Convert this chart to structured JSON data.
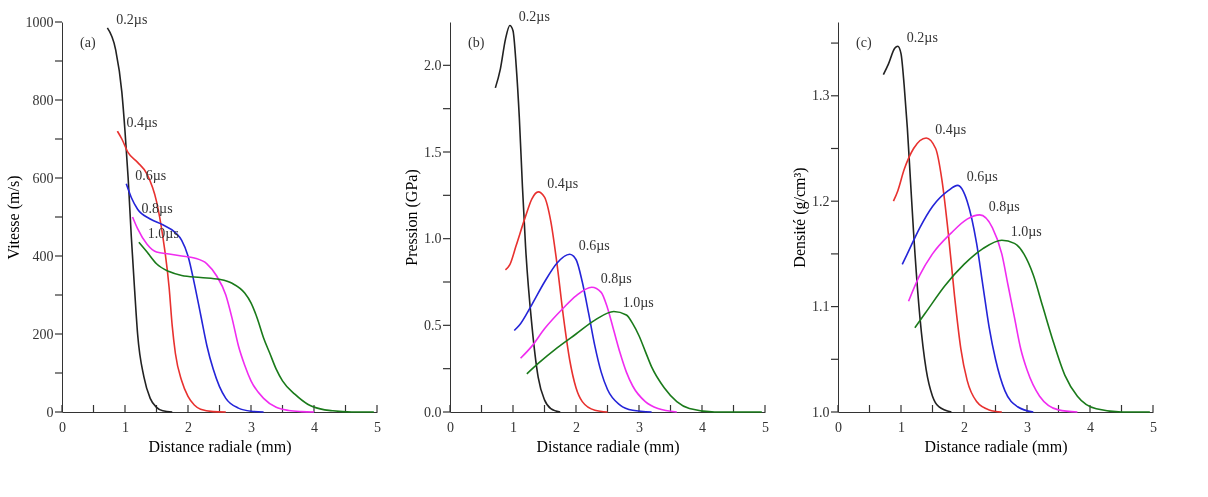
{
  "chart_data": [
    {
      "type": "line",
      "xlabel": "Distance radiale (mm)",
      "ylabel": "Vitesse (m/s)",
      "annotations": [
        "(a)"
      ],
      "grid": false,
      "legend": false,
      "marker": "none",
      "line_style": "solid",
      "xlim": [
        0,
        5
      ],
      "xticks": [
        0,
        {
          "value": 0.5,
          "label": null
        },
        1,
        {
          "value": 1.5,
          "label": null
        },
        2,
        {
          "value": 2.5,
          "label": null
        },
        3,
        {
          "value": 3.5,
          "label": null
        },
        4,
        {
          "value": 4.5,
          "label": null
        },
        5
      ],
      "ylim": [
        0,
        1000
      ],
      "yticks": [
        0,
        {
          "value": 100,
          "label": null
        },
        200,
        {
          "value": 300,
          "label": null
        },
        400,
        {
          "value": 500,
          "label": null
        },
        600,
        {
          "value": 700,
          "label": null
        },
        800,
        {
          "value": 900,
          "label": null
        },
        1000
      ],
      "series": [
        {
          "name": "0.2µs",
          "color": "#222222",
          "x": [
            0.72,
            0.85,
            0.95,
            1.0,
            1.05,
            1.1,
            1.15,
            1.2,
            1.3,
            1.4,
            1.5,
            1.6,
            1.75
          ],
          "values": [
            985,
            930,
            820,
            720,
            600,
            450,
            320,
            200,
            90,
            35,
            12,
            3,
            0
          ]
        },
        {
          "name": "0.4µs",
          "color": "#e8312f",
          "x": [
            0.88,
            0.95,
            1.05,
            1.2,
            1.35,
            1.5,
            1.6,
            1.7,
            1.75,
            1.8,
            1.9,
            2.0,
            2.1,
            2.2,
            2.4,
            2.6
          ],
          "values": [
            720,
            700,
            665,
            640,
            610,
            540,
            450,
            320,
            220,
            150,
            80,
            40,
            18,
            7,
            1,
            0
          ]
        },
        {
          "name": "0.6µs",
          "color": "#2424d8",
          "x": [
            1.02,
            1.1,
            1.2,
            1.4,
            1.6,
            1.8,
            1.9,
            2.0,
            2.1,
            2.2,
            2.3,
            2.4,
            2.5,
            2.6,
            2.8,
            3.0,
            3.2
          ],
          "values": [
            585,
            550,
            520,
            495,
            480,
            460,
            440,
            400,
            330,
            250,
            170,
            110,
            65,
            35,
            10,
            2,
            0
          ]
        },
        {
          "name": "0.8µs",
          "color": "#f02cf0",
          "x": [
            1.12,
            1.2,
            1.35,
            1.5,
            1.7,
            1.9,
            2.1,
            2.3,
            2.45,
            2.6,
            2.7,
            2.8,
            2.9,
            3.0,
            3.2,
            3.4,
            3.6,
            3.8,
            4.0
          ],
          "values": [
            500,
            470,
            430,
            410,
            405,
            400,
            395,
            380,
            350,
            300,
            240,
            170,
            120,
            80,
            35,
            12,
            4,
            1,
            0
          ]
        },
        {
          "name": "1.0µs",
          "color": "#1a7a1a",
          "x": [
            1.22,
            1.35,
            1.5,
            1.7,
            1.9,
            2.2,
            2.5,
            2.7,
            2.9,
            3.0,
            3.1,
            3.2,
            3.3,
            3.4,
            3.5,
            3.7,
            3.9,
            4.1,
            4.3,
            4.6,
            4.95
          ],
          "values": [
            435,
            410,
            380,
            360,
            350,
            345,
            340,
            330,
            305,
            280,
            240,
            190,
            150,
            110,
            80,
            45,
            20,
            8,
            3,
            0,
            0
          ]
        }
      ]
    },
    {
      "type": "line",
      "xlabel": "Distance radiale (mm)",
      "ylabel": "Pression (GPa)",
      "annotations": [
        "(b)"
      ],
      "grid": false,
      "legend": false,
      "marker": "none",
      "line_style": "solid",
      "xlim": [
        0,
        5
      ],
      "xticks": [
        0,
        {
          "value": 0.5,
          "label": null
        },
        1,
        {
          "value": 1.5,
          "label": null
        },
        2,
        {
          "value": 2.5,
          "label": null
        },
        3,
        {
          "value": 3.5,
          "label": null
        },
        4,
        {
          "value": 4.5,
          "label": null
        },
        5
      ],
      "ylim": [
        0,
        2.25
      ],
      "yticks": [
        {
          "value": 0,
          "label": "0.0"
        },
        {
          "value": 0.25,
          "label": null
        },
        0.5,
        {
          "value": 0.75,
          "label": null
        },
        {
          "value": 1,
          "label": "1.0"
        },
        {
          "value": 1.25,
          "label": null
        },
        1.5,
        {
          "value": 1.75,
          "label": null
        },
        {
          "value": 2,
          "label": "2.0"
        }
      ],
      "series": [
        {
          "name": "0.2µs",
          "color": "#222222",
          "x": [
            0.72,
            0.8,
            0.88,
            0.95,
            1.0,
            1.05,
            1.1,
            1.15,
            1.2,
            1.3,
            1.4,
            1.5,
            1.6,
            1.75
          ],
          "values": [
            1.87,
            1.98,
            2.15,
            2.23,
            2.2,
            2.0,
            1.7,
            1.3,
            0.95,
            0.5,
            0.2,
            0.07,
            0.02,
            0
          ]
        },
        {
          "name": "0.4µs",
          "color": "#e8312f",
          "x": [
            0.88,
            0.95,
            1.05,
            1.2,
            1.3,
            1.4,
            1.5,
            1.6,
            1.7,
            1.8,
            1.9,
            2.0,
            2.1,
            2.3,
            2.5
          ],
          "values": [
            0.82,
            0.85,
            0.96,
            1.13,
            1.23,
            1.27,
            1.24,
            1.1,
            0.85,
            0.55,
            0.3,
            0.14,
            0.06,
            0.01,
            0
          ]
        },
        {
          "name": "0.6µs",
          "color": "#2424d8",
          "x": [
            1.02,
            1.1,
            1.3,
            1.5,
            1.7,
            1.9,
            2.0,
            2.1,
            2.2,
            2.3,
            2.4,
            2.5,
            2.7,
            2.9,
            3.2
          ],
          "values": [
            0.47,
            0.5,
            0.62,
            0.75,
            0.86,
            0.91,
            0.88,
            0.75,
            0.57,
            0.38,
            0.23,
            0.13,
            0.04,
            0.01,
            0
          ]
        },
        {
          "name": "0.8µs",
          "color": "#f02cf0",
          "x": [
            1.12,
            1.3,
            1.5,
            1.8,
            2.0,
            2.25,
            2.4,
            2.5,
            2.6,
            2.7,
            2.8,
            2.9,
            3.1,
            3.3,
            3.6
          ],
          "values": [
            0.31,
            0.38,
            0.48,
            0.6,
            0.67,
            0.72,
            0.69,
            0.6,
            0.47,
            0.34,
            0.23,
            0.15,
            0.06,
            0.02,
            0
          ]
        },
        {
          "name": "1.0µs",
          "color": "#1a7a1a",
          "x": [
            1.22,
            1.4,
            1.7,
            2.0,
            2.3,
            2.6,
            2.8,
            2.9,
            3.0,
            3.1,
            3.2,
            3.4,
            3.6,
            3.8,
            4.2,
            4.95
          ],
          "values": [
            0.22,
            0.28,
            0.37,
            0.45,
            0.53,
            0.58,
            0.56,
            0.51,
            0.44,
            0.35,
            0.26,
            0.14,
            0.06,
            0.02,
            0,
            0
          ]
        }
      ]
    },
    {
      "type": "line",
      "xlabel": "Distance radiale (mm)",
      "ylabel": "Densité (g/cm³)",
      "annotations": [
        "(c)"
      ],
      "grid": false,
      "legend": false,
      "marker": "none",
      "line_style": "solid",
      "xlim": [
        0,
        5
      ],
      "xticks": [
        0,
        {
          "value": 0.5,
          "label": null
        },
        1,
        {
          "value": 1.5,
          "label": null
        },
        2,
        {
          "value": 2.5,
          "label": null
        },
        3,
        {
          "value": 3.5,
          "label": null
        },
        4,
        {
          "value": 4.5,
          "label": null
        },
        5
      ],
      "ylim": [
        1.0,
        1.37
      ],
      "yticks": [
        {
          "value": 1,
          "label": "1.0"
        },
        {
          "value": 1.05,
          "label": null
        },
        1.1,
        {
          "value": 1.15,
          "label": null
        },
        1.2,
        {
          "value": 1.25,
          "label": null
        },
        1.3,
        {
          "value": 1.35,
          "label": null
        }
      ],
      "series": [
        {
          "name": "0.2µs",
          "color": "#222222",
          "x": [
            0.72,
            0.8,
            0.9,
            0.95,
            1.0,
            1.05,
            1.1,
            1.15,
            1.2,
            1.3,
            1.4,
            1.5,
            1.6,
            1.8
          ],
          "values": [
            1.32,
            1.33,
            1.345,
            1.347,
            1.34,
            1.31,
            1.27,
            1.22,
            1.17,
            1.09,
            1.04,
            1.015,
            1.005,
            1.0
          ]
        },
        {
          "name": "0.4µs",
          "color": "#e8312f",
          "x": [
            0.88,
            0.95,
            1.05,
            1.2,
            1.4,
            1.55,
            1.65,
            1.75,
            1.85,
            1.95,
            2.05,
            2.2,
            2.4,
            2.6
          ],
          "values": [
            1.2,
            1.21,
            1.23,
            1.25,
            1.26,
            1.25,
            1.22,
            1.17,
            1.11,
            1.06,
            1.03,
            1.01,
            1.002,
            1.0
          ]
        },
        {
          "name": "0.6µs",
          "color": "#2424d8",
          "x": [
            1.02,
            1.1,
            1.3,
            1.5,
            1.75,
            1.9,
            2.05,
            2.2,
            2.3,
            2.4,
            2.5,
            2.65,
            2.85,
            3.1
          ],
          "values": [
            1.14,
            1.15,
            1.175,
            1.195,
            1.21,
            1.215,
            1.2,
            1.16,
            1.12,
            1.08,
            1.05,
            1.02,
            1.005,
            1.0
          ]
        },
        {
          "name": "0.8µs",
          "color": "#f02cf0",
          "x": [
            1.12,
            1.3,
            1.5,
            1.8,
            2.05,
            2.25,
            2.45,
            2.6,
            2.7,
            2.8,
            2.9,
            3.0,
            3.2,
            3.5,
            3.8
          ],
          "values": [
            1.105,
            1.13,
            1.15,
            1.17,
            1.183,
            1.187,
            1.175,
            1.15,
            1.12,
            1.09,
            1.06,
            1.04,
            1.015,
            1.002,
            1.0
          ]
        },
        {
          "name": "1.0µs",
          "color": "#1a7a1a",
          "x": [
            1.22,
            1.4,
            1.7,
            2.0,
            2.3,
            2.6,
            2.8,
            2.95,
            3.1,
            3.25,
            3.4,
            3.6,
            3.8,
            4.1,
            4.5,
            4.95
          ],
          "values": [
            1.08,
            1.095,
            1.12,
            1.14,
            1.155,
            1.163,
            1.16,
            1.15,
            1.13,
            1.1,
            1.07,
            1.035,
            1.015,
            1.003,
            1.0,
            1.0
          ]
        }
      ]
    }
  ]
}
